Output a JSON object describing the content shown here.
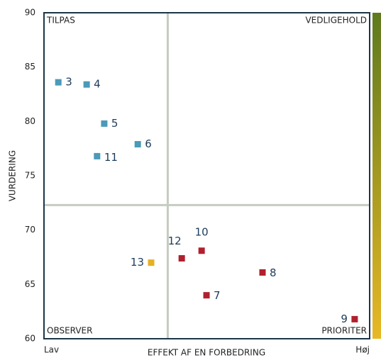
{
  "chart_data": {
    "type": "scatter",
    "y_label": "VURDERING",
    "x_label": "EFFEKT AF EN FORBEDRING",
    "x_low_label": "Lav",
    "x_high_label": "Høj",
    "quadrants": {
      "top_left": "TILPAS",
      "top_right": "VEDLIGEHOLD",
      "bottom_left": "OBSERVER",
      "bottom_right": "PRIORITER"
    },
    "xlim": [
      0,
      100
    ],
    "ylim": [
      60,
      90
    ],
    "yticks": [
      60,
      65,
      70,
      75,
      80,
      85,
      90
    ],
    "dividers": {
      "x": 38,
      "y": 72.3
    },
    "points": {
      "labels": [
        "3",
        "4",
        "5",
        "6",
        "11",
        "12",
        "10",
        "13",
        "8",
        "7",
        "9"
      ],
      "x": [
        4.4,
        13.1,
        18.5,
        28.8,
        16.3,
        42.3,
        48.4,
        32.9,
        67.1,
        49.9,
        95.4
      ],
      "values": [
        83.6,
        83.4,
        79.8,
        77.9,
        76.8,
        67.4,
        68.1,
        67.0,
        66.1,
        64.0,
        61.8
      ],
      "colors": [
        "#4a9ab8",
        "#4a9ab8",
        "#4a9ab8",
        "#4a9ab8",
        "#4a9ab8",
        "#b0202e",
        "#b0202e",
        "#e6b020",
        "#b0202e",
        "#b0202e",
        "#b0202e"
      ]
    }
  }
}
